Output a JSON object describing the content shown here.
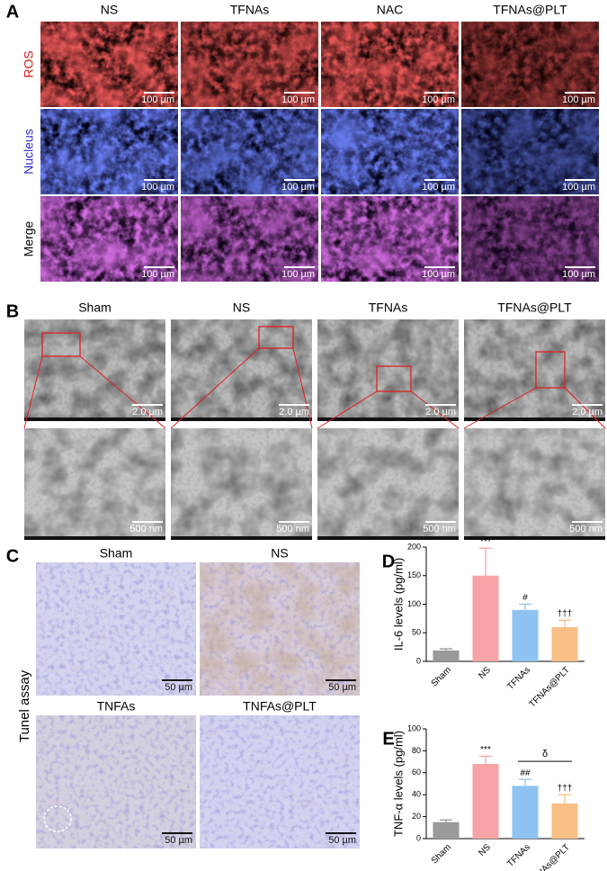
{
  "panel_a": {
    "label": "A",
    "columns": [
      "NS",
      "TFNAs",
      "NAC",
      "TFNAs@PLT"
    ],
    "rows": [
      "ROS",
      "Nucleus",
      "Merge"
    ],
    "scale_bar": "100 µm"
  },
  "panel_b": {
    "label": "B",
    "columns": [
      "Sham",
      "NS",
      "TFNAs",
      "TFNAs@PLT"
    ],
    "scale_bars": [
      "2.0 µm",
      "500 nm"
    ]
  },
  "panel_c": {
    "label": "C",
    "images": [
      "Sham",
      "NS",
      "TNFAs",
      "TNFAs@PLT"
    ],
    "side_label": "Tunel assay",
    "scale_bar": "50 µm"
  },
  "chart_data": [
    {
      "panel_label": "D",
      "type": "bar",
      "y_label": "IL-6 levels (pg/ml)",
      "categories": [
        "Sham",
        "NS",
        "TFNAs",
        "TFNAs@PLT"
      ],
      "values": [
        19,
        150,
        90,
        60
      ],
      "errors": [
        3,
        48,
        10,
        12
      ],
      "colors": [
        "#9a9a9a",
        "#f7a3a5",
        "#8fc4f2",
        "#f9bf85"
      ],
      "annotations": [
        null,
        "***",
        "#",
        "†††"
      ],
      "ylim": [
        0,
        200
      ],
      "yticks": [
        0,
        50,
        100,
        150,
        200
      ]
    },
    {
      "panel_label": "E",
      "type": "bar",
      "y_label": "TNF-α levels (pg/ml)",
      "categories": [
        "Sham",
        "NS",
        "TFNAs",
        "TFNAs@PLT"
      ],
      "values": [
        15,
        68,
        48,
        32
      ],
      "errors": [
        2,
        7,
        6,
        8
      ],
      "colors": [
        "#9a9a9a",
        "#f7a3a5",
        "#8fc4f2",
        "#f9bf85"
      ],
      "annotations": [
        null,
        "***",
        "##",
        "†††"
      ],
      "bracket_label": "δ",
      "ylim": [
        0,
        100
      ],
      "yticks": [
        0,
        20,
        40,
        60,
        80,
        100
      ]
    }
  ]
}
